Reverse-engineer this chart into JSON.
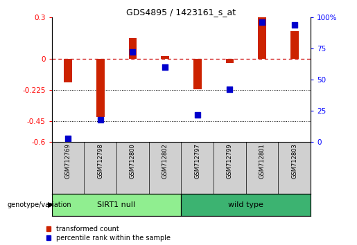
{
  "title": "GDS4895 / 1423161_s_at",
  "samples": [
    "GSM712769",
    "GSM712798",
    "GSM712800",
    "GSM712802",
    "GSM712797",
    "GSM712799",
    "GSM712801",
    "GSM712803"
  ],
  "red_values": [
    -0.17,
    -0.42,
    0.15,
    0.02,
    -0.22,
    -0.03,
    0.3,
    0.2
  ],
  "blue_values_pct": [
    3,
    18,
    72,
    60,
    22,
    42,
    96,
    94
  ],
  "ylim_left": [
    -0.6,
    0.3
  ],
  "ylim_right": [
    0,
    100
  ],
  "yticks_left": [
    0.3,
    0,
    -0.225,
    -0.45,
    -0.6
  ],
  "yticks_right": [
    100,
    75,
    50,
    25,
    0
  ],
  "hlines": [
    -0.225,
    -0.45
  ],
  "hline_zero": 0,
  "group1_label": "SIRT1 null",
  "group2_label": "wild type",
  "group1_color": "#90EE90",
  "group2_color": "#3CB371",
  "group1_indices": [
    0,
    1,
    2,
    3
  ],
  "group2_indices": [
    4,
    5,
    6,
    7
  ],
  "legend_red_label": "transformed count",
  "legend_blue_label": "percentile rank within the sample",
  "bar_color": "#CC2200",
  "dot_color": "#0000CC",
  "genotype_label": "genotype/variation",
  "background_color": "#ffffff",
  "plot_bg_color": "#ffffff",
  "bar_width": 0.25,
  "dot_size": 28,
  "label_panel_color": "#d0d0d0"
}
